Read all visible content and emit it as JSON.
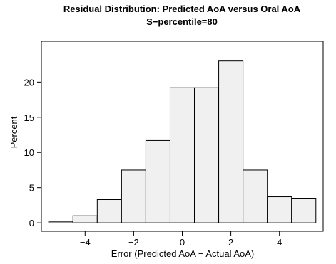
{
  "chart_data": {
    "type": "bar",
    "title": "Residual Distribution: Predicted AoA versus Oral AoA",
    "subtitle": "S−percentile=80",
    "xlabel": "Error (Predicted AoA − Actual AoA)",
    "ylabel": "Percent",
    "xlim": [
      -5.8,
      5.8
    ],
    "ylim": [
      -1.2,
      25.8
    ],
    "xticks": [
      -4,
      -2,
      0,
      2,
      4
    ],
    "xtick_labels": [
      "−4",
      "−2",
      "0",
      "2",
      "4"
    ],
    "yticks": [
      0,
      5,
      10,
      15,
      20
    ],
    "yticks_labels": [
      "0",
      "5",
      "10",
      "15",
      "20"
    ],
    "bins": [
      {
        "x0": -5.5,
        "x1": -4.5,
        "value": 0.2
      },
      {
        "x0": -4.5,
        "x1": -3.5,
        "value": 1.0
      },
      {
        "x0": -3.5,
        "x1": -2.5,
        "value": 3.3
      },
      {
        "x0": -2.5,
        "x1": -1.5,
        "value": 7.5
      },
      {
        "x0": -1.5,
        "x1": -0.5,
        "value": 11.7
      },
      {
        "x0": -0.5,
        "x1": 0.5,
        "value": 19.2
      },
      {
        "x0": 0.5,
        "x1": 1.5,
        "value": 19.2
      },
      {
        "x0": 1.5,
        "x1": 2.5,
        "value": 23.0
      },
      {
        "x0": 2.5,
        "x1": 3.5,
        "value": 7.5
      },
      {
        "x0": 3.5,
        "x1": 4.5,
        "value": 3.7
      },
      {
        "x0": 4.5,
        "x1": 5.5,
        "value": 3.5
      }
    ],
    "grid": false,
    "legend": "none",
    "bar_color": "#f0f0f0",
    "edge_color": "#000000"
  }
}
